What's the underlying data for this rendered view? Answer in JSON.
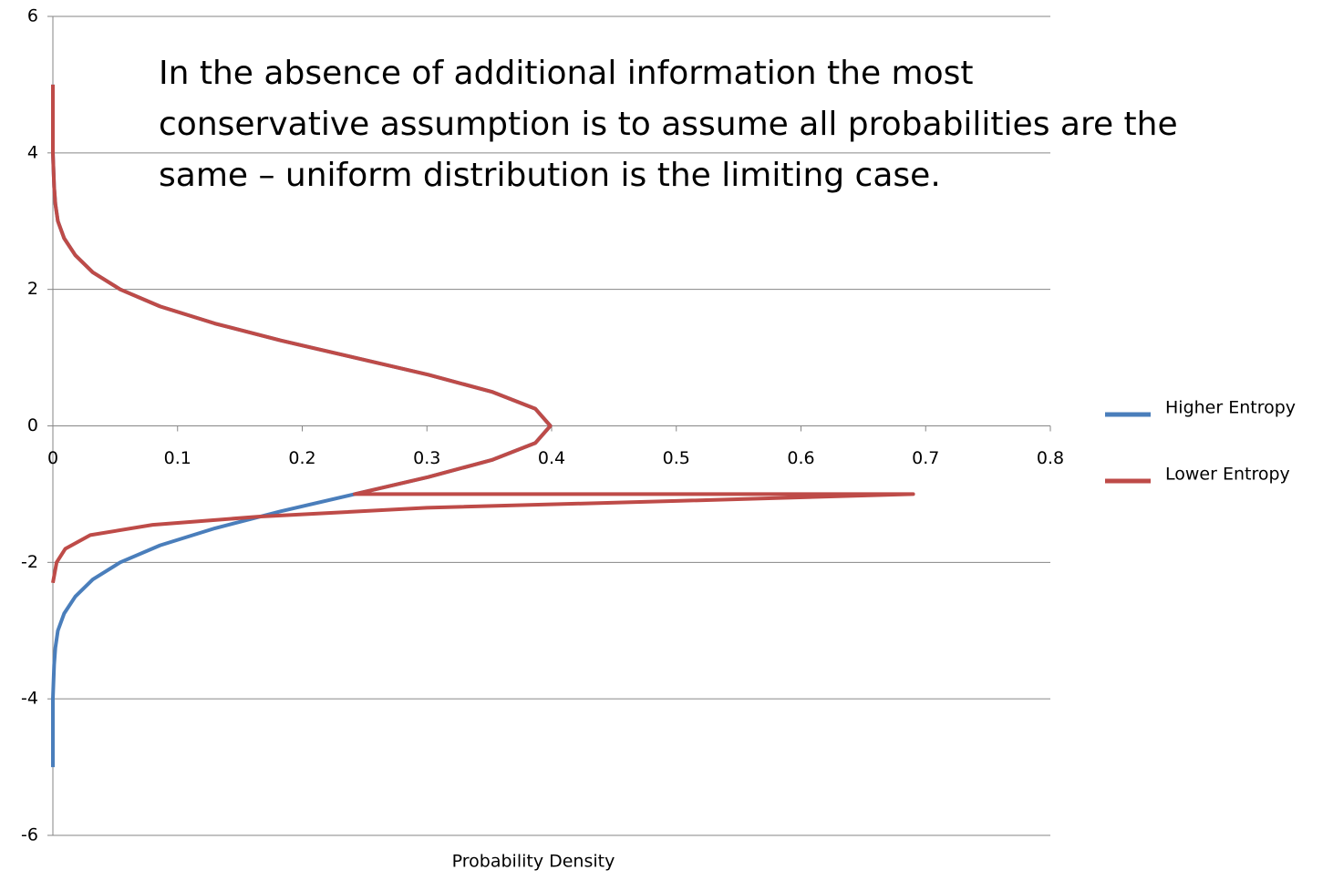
{
  "chart_data": {
    "type": "line",
    "annotations": [
      "In the absence of additional information the most",
      "conservative assumption is to assume all probabilities are the",
      "same – uniform distribution is the limiting case."
    ],
    "xlabel": "Probability Density",
    "xlim": [
      0,
      0.8
    ],
    "xticks": [
      0,
      0.1,
      0.2,
      0.3,
      0.4,
      0.5,
      0.6,
      0.7,
      0.8
    ],
    "ylim": [
      -6,
      6
    ],
    "yticks": [
      -6,
      -4,
      -2,
      0,
      2,
      4,
      6
    ],
    "grid": true,
    "legend": "right",
    "series": [
      {
        "name": "Higher Entropy",
        "color": "#4a7ebb",
        "x": [
          0,
          0,
          0,
          0.001,
          0.002,
          0.004,
          0.009,
          0.018,
          0.032,
          0.054,
          0.086,
          0.13,
          0.183,
          0.242,
          0.301,
          0.352,
          0.387,
          0.399,
          0.387,
          0.352,
          0.301,
          0.242,
          0.183,
          0.13,
          0.086,
          0.054,
          0.032,
          0.018,
          0.009,
          0.004,
          0.002,
          0.001,
          0,
          0,
          0
        ],
        "y": [
          5,
          4.5,
          4,
          3.5,
          3.25,
          3,
          2.75,
          2.5,
          2.25,
          2,
          1.75,
          1.5,
          1.25,
          1,
          0.75,
          0.5,
          0.25,
          0,
          -0.25,
          -0.5,
          -0.75,
          -1,
          -1.25,
          -1.5,
          -1.75,
          -2,
          -2.25,
          -2.5,
          -2.75,
          -3,
          -3.25,
          -3.5,
          -4,
          -4.5,
          -5
        ]
      },
      {
        "name": "Lower Entropy",
        "color": "#be4b48",
        "x": [
          0,
          0,
          0,
          0.001,
          0.002,
          0.004,
          0.009,
          0.018,
          0.032,
          0.054,
          0.086,
          0.13,
          0.183,
          0.242,
          0.301,
          0.352,
          0.387,
          0.399,
          0.387,
          0.352,
          0.301,
          0.242,
          0.69,
          0.5,
          0.3,
          0.165,
          0.08,
          0.03,
          0.01,
          0.003,
          0
        ],
        "y": [
          5,
          4.5,
          4,
          3.5,
          3.25,
          3,
          2.75,
          2.5,
          2.25,
          2,
          1.75,
          1.5,
          1.25,
          1,
          0.75,
          0.5,
          0.25,
          0,
          -0.25,
          -0.5,
          -0.75,
          -1,
          -1,
          -1.1,
          -1.2,
          -1.33,
          -1.45,
          -1.6,
          -1.8,
          -2,
          -2.3
        ]
      }
    ]
  }
}
